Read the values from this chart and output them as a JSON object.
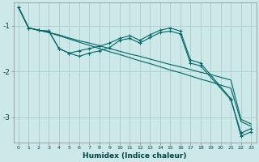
{
  "xlabel": "Humidex (Indice chaleur)",
  "bg_color": "#cce8e8",
  "grid_color": "#aacccc",
  "line_color": "#006666",
  "xlim": [
    -0.5,
    23.5
  ],
  "ylim": [
    -3.55,
    -0.5
  ],
  "yticks": [
    -3,
    -2,
    -1
  ],
  "xticks": [
    0,
    1,
    2,
    3,
    4,
    5,
    6,
    7,
    8,
    9,
    10,
    11,
    12,
    13,
    14,
    15,
    16,
    17,
    18,
    19,
    20,
    21,
    22,
    23
  ],
  "line1_x": [
    0,
    1,
    2,
    3,
    4,
    5,
    6,
    7,
    8,
    9,
    10,
    11,
    12,
    13,
    14,
    15,
    16,
    17,
    18,
    19,
    20,
    21,
    22,
    23
  ],
  "line1_y": [
    -0.6,
    -1.05,
    -1.1,
    -1.15,
    -1.2,
    -1.27,
    -1.33,
    -1.38,
    -1.44,
    -1.5,
    -1.56,
    -1.62,
    -1.67,
    -1.73,
    -1.79,
    -1.85,
    -1.9,
    -1.96,
    -2.02,
    -2.07,
    -2.13,
    -2.19,
    -3.05,
    -3.15
  ],
  "line2_x": [
    0,
    1,
    2,
    3,
    4,
    5,
    6,
    7,
    8,
    9,
    10,
    11,
    12,
    13,
    14,
    15,
    16,
    17,
    18,
    19,
    20,
    21,
    22,
    23
  ],
  "line2_y": [
    -0.6,
    -1.05,
    -1.1,
    -1.15,
    -1.22,
    -1.29,
    -1.36,
    -1.43,
    -1.5,
    -1.57,
    -1.63,
    -1.7,
    -1.77,
    -1.83,
    -1.9,
    -1.97,
    -2.03,
    -2.1,
    -2.17,
    -2.23,
    -2.3,
    -2.37,
    -3.1,
    -3.2
  ],
  "line3_x": [
    0,
    1,
    2,
    3,
    4,
    5,
    6,
    7,
    8,
    9,
    10,
    11,
    12,
    13,
    14,
    15,
    16,
    17,
    18,
    21,
    22,
    23
  ],
  "line3_y": [
    -0.6,
    -1.05,
    -1.1,
    -1.12,
    -1.5,
    -1.6,
    -1.67,
    -1.6,
    -1.55,
    -1.48,
    -1.32,
    -1.28,
    -1.38,
    -1.26,
    -1.15,
    -1.12,
    -1.18,
    -1.82,
    -1.88,
    -2.62,
    -3.35,
    -3.25
  ],
  "line4_x": [
    0,
    1,
    2,
    3,
    4,
    5,
    6,
    7,
    8,
    9,
    10,
    11,
    12,
    13,
    14,
    15,
    16,
    17,
    18,
    21,
    22,
    23
  ],
  "line4_y": [
    -0.6,
    -1.05,
    -1.1,
    -1.12,
    -1.5,
    -1.6,
    -1.55,
    -1.5,
    -1.45,
    -1.38,
    -1.28,
    -1.22,
    -1.32,
    -1.2,
    -1.1,
    -1.05,
    -1.12,
    -1.75,
    -1.82,
    -2.6,
    -3.42,
    -3.32
  ]
}
